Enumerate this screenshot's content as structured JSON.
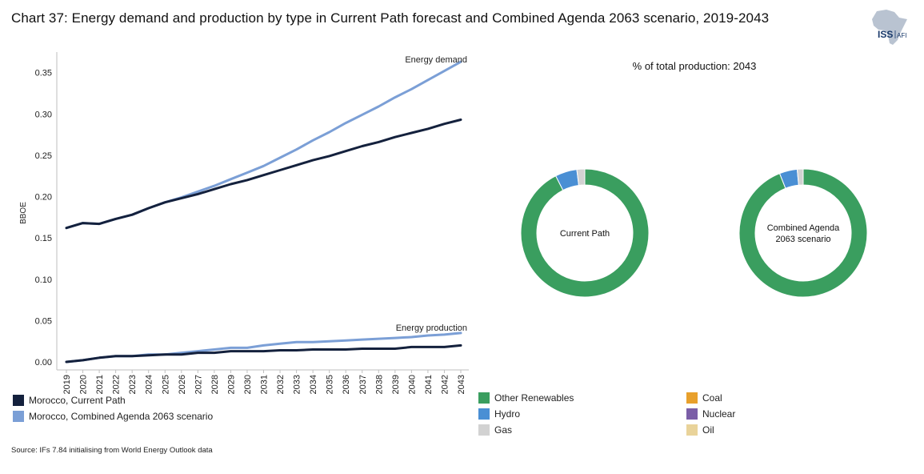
{
  "title": "Chart 37: Energy demand and production by type in Current Path forecast and Combined Agenda 2063 scenario, 2019-2043",
  "logo": {
    "text": "ISS",
    "sub": "AFI"
  },
  "source": "Source: IFs 7.84 initialising from World Energy Outlook data",
  "colors": {
    "current_path": "#14213d",
    "combined_agenda": "#7b9fd6",
    "other_renewables": "#3a9e5f",
    "hydro": "#4a8fd4",
    "gas": "#d2d2d2",
    "coal": "#e8a02c",
    "nuclear": "#7b5ea7",
    "oil": "#e9d39a",
    "logo": "#b9c3d1"
  },
  "chart_data": [
    {
      "type": "line",
      "ylabel": "BBOE",
      "ylim": [
        0,
        0.37
      ],
      "yticks": [
        "0.00",
        "0.05",
        "0.10",
        "0.15",
        "0.20",
        "0.25",
        "0.30",
        "0.35"
      ],
      "ytick_values": [
        0,
        0.05,
        0.1,
        0.15,
        0.2,
        0.25,
        0.3,
        0.35
      ],
      "x": [
        "2019",
        "2020",
        "2021",
        "2022",
        "2023",
        "2024",
        "2025",
        "2026",
        "2027",
        "2028",
        "2029",
        "2030",
        "2031",
        "2032",
        "2033",
        "2034",
        "2035",
        "2036",
        "2037",
        "2038",
        "2039",
        "2040",
        "2041",
        "2042",
        "2043"
      ],
      "annotations": {
        "demand": "Energy demand",
        "production": "Energy production"
      },
      "series": [
        {
          "name": "Morocco, Current Path",
          "group": "demand",
          "color_key": "current_path",
          "values": [
            0.162,
            0.168,
            0.167,
            0.173,
            0.178,
            0.186,
            0.193,
            0.198,
            0.203,
            0.209,
            0.215,
            0.22,
            0.226,
            0.232,
            0.238,
            0.244,
            0.249,
            0.255,
            0.261,
            0.266,
            0.272,
            0.277,
            0.282,
            0.288,
            0.293
          ]
        },
        {
          "name": "Morocco, Combined Agenda 2063 scenario",
          "group": "demand",
          "color_key": "combined_agenda",
          "values": [
            0.162,
            0.168,
            0.167,
            0.173,
            0.178,
            0.186,
            0.193,
            0.199,
            0.206,
            0.213,
            0.221,
            0.229,
            0.237,
            0.247,
            0.257,
            0.268,
            0.278,
            0.289,
            0.299,
            0.309,
            0.32,
            0.33,
            0.341,
            0.352,
            0.363
          ]
        },
        {
          "name": "Morocco, Current Path",
          "group": "production",
          "color_key": "current_path",
          "values": [
            0.0,
            0.002,
            0.005,
            0.007,
            0.007,
            0.008,
            0.009,
            0.009,
            0.011,
            0.011,
            0.013,
            0.013,
            0.013,
            0.014,
            0.014,
            0.015,
            0.015,
            0.015,
            0.016,
            0.016,
            0.016,
            0.018,
            0.018,
            0.018,
            0.02
          ]
        },
        {
          "name": "Morocco, Combined Agenda 2063 scenario",
          "group": "production",
          "color_key": "combined_agenda",
          "values": [
            0.0,
            0.002,
            0.005,
            0.007,
            0.007,
            0.009,
            0.009,
            0.011,
            0.013,
            0.015,
            0.017,
            0.017,
            0.02,
            0.022,
            0.024,
            0.024,
            0.025,
            0.026,
            0.027,
            0.028,
            0.029,
            0.03,
            0.032,
            0.033,
            0.035
          ]
        }
      ],
      "legend": [
        "Morocco, Current Path",
        "Morocco, Combined Agenda 2063 scenario"
      ]
    },
    {
      "type": "pie",
      "title": "% of total production: 2043",
      "donuts": [
        {
          "label": "Current Path",
          "slices": [
            {
              "name": "Other Renewables",
              "color_key": "other_renewables",
              "value": 92.5
            },
            {
              "name": "Hydro",
              "color_key": "hydro",
              "value": 5.5
            },
            {
              "name": "Gas",
              "color_key": "gas",
              "value": 2.0
            }
          ]
        },
        {
          "label": "Combined Agenda 2063 scenario",
          "label_lines": [
            "Combined Agenda",
            "2063 scenario"
          ],
          "slices": [
            {
              "name": "Other Renewables",
              "color_key": "other_renewables",
              "value": 94.0
            },
            {
              "name": "Hydro",
              "color_key": "hydro",
              "value": 4.5
            },
            {
              "name": "Gas",
              "color_key": "gas",
              "value": 1.5
            }
          ]
        }
      ],
      "legend": [
        {
          "name": "Other Renewables",
          "color_key": "other_renewables"
        },
        {
          "name": "Coal",
          "color_key": "coal"
        },
        {
          "name": "Hydro",
          "color_key": "hydro"
        },
        {
          "name": "Nuclear",
          "color_key": "nuclear"
        },
        {
          "name": "Gas",
          "color_key": "gas"
        },
        {
          "name": "Oil",
          "color_key": "oil"
        }
      ]
    }
  ]
}
